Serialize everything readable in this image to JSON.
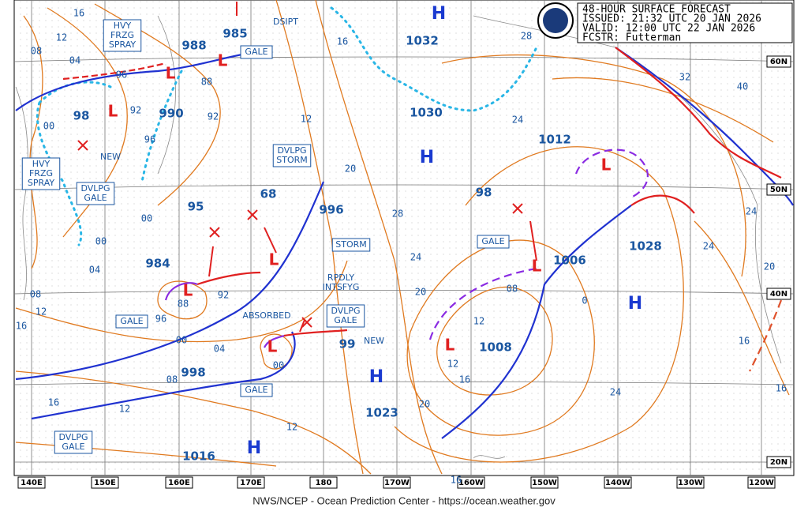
{
  "header": {
    "title": "48-HOUR SURFACE FORECAST",
    "issued": "ISSUED: 21:32 UTC 20 JAN 2026",
    "valid": "VALID:  12:00 UTC 22 JAN 2026",
    "forecaster": "FCSTR:  Futterman"
  },
  "footer": "NWS/NCEP - Ocean Prediction Center - https://ocean.weather.gov",
  "longitudes": [
    "140E",
    "150E",
    "160E",
    "170E",
    "180",
    "170W",
    "160W",
    "150W",
    "140W",
    "130W",
    "120W"
  ],
  "latitudes": [
    "60N",
    "50N",
    "40N",
    "20N"
  ],
  "boxed_labels": [
    [
      "HVY",
      "FRZG",
      "SPRAY"
    ],
    [
      "GALE"
    ],
    [
      "HVY",
      "FRZG",
      "SPRAY"
    ],
    [
      "DVLPG",
      "GALE"
    ],
    [
      "DVLPG",
      "STORM"
    ],
    [
      "STORM"
    ],
    [
      "GALE"
    ],
    [
      "GALE"
    ],
    [
      "DVLPG",
      "GALE"
    ],
    [
      "GALE"
    ],
    [
      "DVLPG",
      "GALE"
    ]
  ],
  "notes": [
    [
      "DSIPT"
    ],
    [
      "NEW"
    ],
    [
      "RPDLY",
      "INTSFYG"
    ],
    [
      "ABSORBED"
    ],
    [
      "NEW"
    ]
  ],
  "pressures": [
    "988",
    "985",
    "990",
    "98",
    "1032",
    "1030",
    "1012",
    "98",
    "95",
    "68",
    "996",
    "984",
    "1006",
    "1028",
    "1008",
    "998",
    "99",
    "1023",
    "1016"
  ],
  "highs": [
    "H",
    "H",
    "H",
    "H",
    "H"
  ],
  "lows": [
    "L",
    "L",
    "L",
    "L",
    "L",
    "L",
    "L",
    "L",
    "L"
  ],
  "isobar_labels": [
    "16",
    "12",
    "08",
    "04",
    "96",
    "92",
    "96",
    "88",
    "92",
    "00",
    "00",
    "00",
    "04",
    "08",
    "12",
    "16",
    "88",
    "92",
    "96",
    "00",
    "04",
    "08",
    "16",
    "12",
    "12",
    "00",
    "20",
    "28",
    "24",
    "20",
    "16",
    "12",
    "16",
    "20",
    "16",
    "12",
    "12",
    "08",
    "0",
    "24",
    "24",
    "20",
    "24",
    "32",
    "40",
    "28",
    "24",
    "16",
    "16"
  ]
}
